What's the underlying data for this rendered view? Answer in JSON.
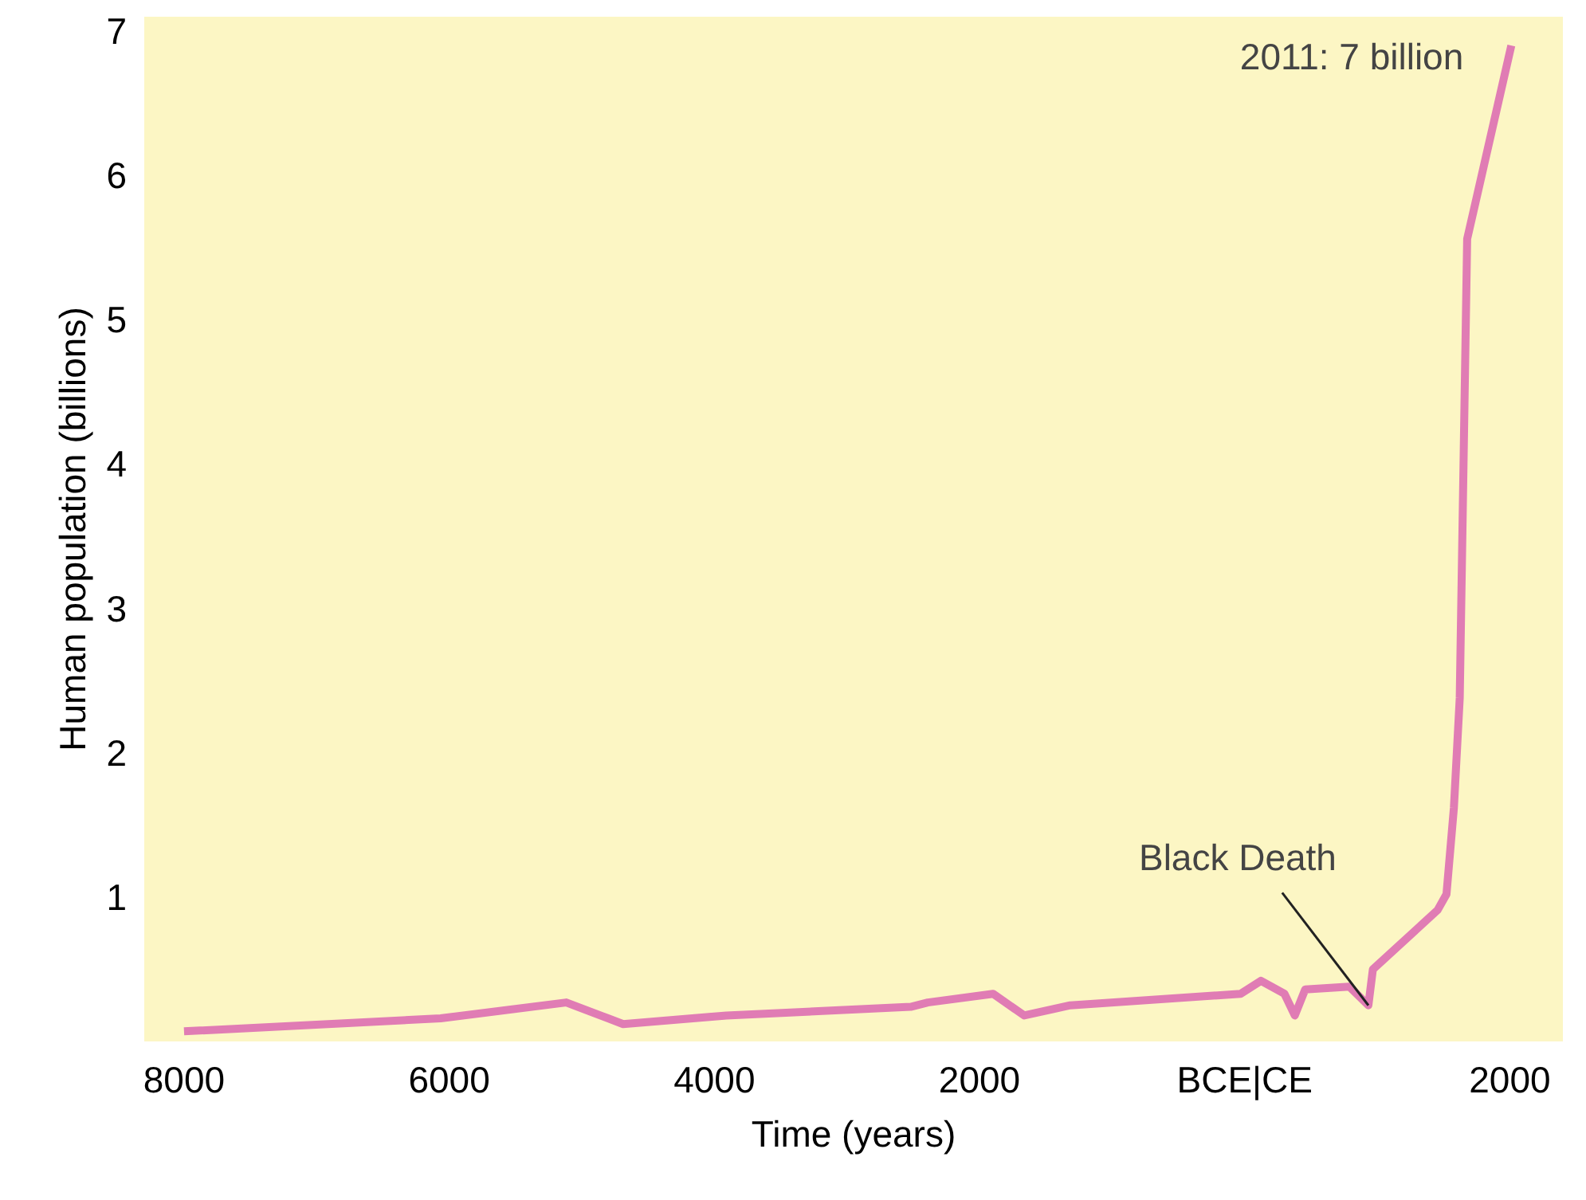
{
  "chart_data": {
    "type": "line",
    "xlabel": "Time (years)",
    "ylabel": "Human population (billions)",
    "x": [
      -8000,
      -6065,
      -5117,
      -4688,
      -3909,
      -2519,
      -2390,
      -1898,
      -1663,
      -1316,
      -31,
      122,
      300,
      378,
      456,
      789,
      933,
      967,
      1455,
      1522,
      1578,
      1622,
      1678,
      2011
    ],
    "series": [
      {
        "color": "#e07cb4",
        "values": [
          0.07,
          0.16,
          0.27,
          0.12,
          0.18,
          0.24,
          0.27,
          0.33,
          0.18,
          0.25,
          0.33,
          0.42,
          0.33,
          0.18,
          0.36,
          0.38,
          0.25,
          0.5,
          0.91,
          1.02,
          1.62,
          2.38,
          5.56,
          6.9
        ]
      }
    ],
    "xlim": [
      -8300,
      2400
    ],
    "ylim": [
      0,
      7.1
    ],
    "xticks": [
      {
        "value": -8000,
        "label": "8000"
      },
      {
        "value": -6000,
        "label": "6000"
      },
      {
        "value": -4000,
        "label": "4000"
      },
      {
        "value": -2000,
        "label": "2000"
      },
      {
        "value": 0,
        "label": "BCE|CE"
      },
      2000
    ],
    "yticks": [
      1,
      2,
      3,
      4,
      5,
      6,
      7
    ],
    "grid": false,
    "marker": "none",
    "line_style": "solid",
    "annotations": [
      {
        "text": "2011: 7 billion",
        "x": 2011,
        "y": 6.9
      },
      {
        "text": "Black Death",
        "x": 933,
        "y": 0.25
      }
    ]
  }
}
